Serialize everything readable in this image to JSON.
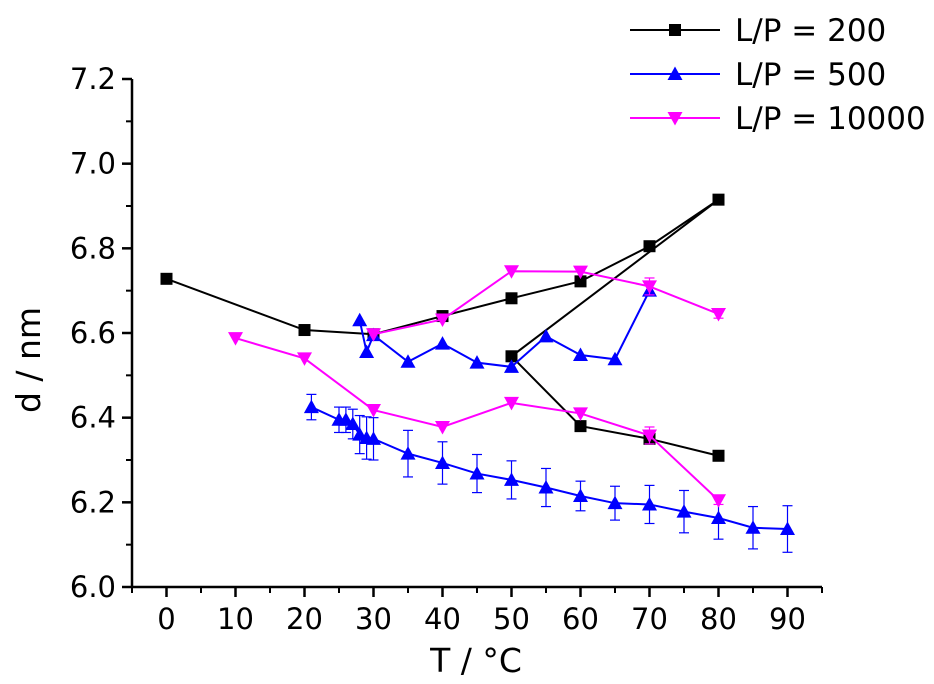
{
  "chart_data": {
    "type": "line",
    "xlabel": "T  / °C",
    "ylabel": "d  /  nm",
    "xlim": [
      -5,
      95
    ],
    "ylim": [
      6.0,
      7.2
    ],
    "x_ticks": [
      0,
      10,
      20,
      30,
      40,
      50,
      60,
      70,
      80,
      90
    ],
    "y_ticks": [
      6.0,
      6.2,
      6.4,
      6.6,
      6.8,
      7.0,
      7.2
    ],
    "x_tick_labels": [
      "0",
      "10",
      "20",
      "30",
      "40",
      "50",
      "60",
      "70",
      "80",
      "90"
    ],
    "y_tick_labels": [
      "6.0",
      "6.2",
      "6.4",
      "6.6",
      "6.8",
      "7.0",
      "7.2"
    ],
    "legend_position": "top-right, outside plot",
    "grid": false,
    "series": [
      {
        "name": "L/P = 200",
        "color": "#000000",
        "marker": "square",
        "x": [
          0,
          20,
          30,
          40,
          50,
          60,
          70,
          80,
          50,
          60,
          70,
          80
        ],
        "y": [
          6.728,
          6.607,
          6.597,
          6.64,
          6.682,
          6.722,
          6.805,
          6.915,
          6.545,
          6.38,
          6.35,
          6.31
        ],
        "err": [
          0,
          0,
          0,
          0,
          0,
          0,
          0,
          0.01,
          0.01,
          0,
          0,
          0
        ]
      },
      {
        "name": "L/P = 500",
        "color": "#0000ff",
        "marker": "triangle-up",
        "x": [
          28,
          29,
          30,
          35,
          40,
          45,
          50,
          55,
          60,
          65,
          70
        ],
        "y": [
          6.63,
          6.555,
          6.595,
          6.532,
          6.575,
          6.53,
          6.52,
          6.592,
          6.548,
          6.538,
          6.7
        ],
        "err": [
          0,
          0,
          0,
          0,
          0,
          0,
          0,
          0,
          0,
          0,
          0
        ],
        "x2": [
          21,
          25,
          26,
          27,
          28,
          29,
          30,
          35,
          40,
          45,
          50,
          55,
          60,
          65,
          70,
          75,
          80,
          85,
          90
        ],
        "y2": [
          6.425,
          6.395,
          6.395,
          6.385,
          6.36,
          6.352,
          6.35,
          6.315,
          6.293,
          6.268,
          6.253,
          6.235,
          6.215,
          6.198,
          6.195,
          6.178,
          6.163,
          6.14,
          6.137
        ],
        "err2": [
          0.03,
          0.03,
          0.03,
          0.035,
          0.045,
          0.05,
          0.05,
          0.055,
          0.05,
          0.045,
          0.045,
          0.045,
          0.035,
          0.04,
          0.045,
          0.05,
          0.05,
          0.05,
          0.055
        ]
      },
      {
        "name": "L/P = 10000",
        "color": "#ff00ff",
        "marker": "triangle-down",
        "x": [
          30,
          40,
          50,
          60,
          70,
          80
        ],
        "y": [
          6.597,
          6.632,
          6.746,
          6.745,
          6.71,
          6.645
        ],
        "err": [
          0,
          0,
          0,
          0,
          0.02,
          0.01
        ],
        "x2": [
          10,
          20,
          30,
          40,
          50,
          60,
          70,
          80
        ],
        "y2": [
          6.588,
          6.54,
          6.418,
          6.378,
          6.435,
          6.41,
          6.358,
          6.205
        ],
        "err2": [
          0,
          0,
          0,
          0,
          0,
          0,
          0.02,
          0.01
        ]
      }
    ]
  }
}
